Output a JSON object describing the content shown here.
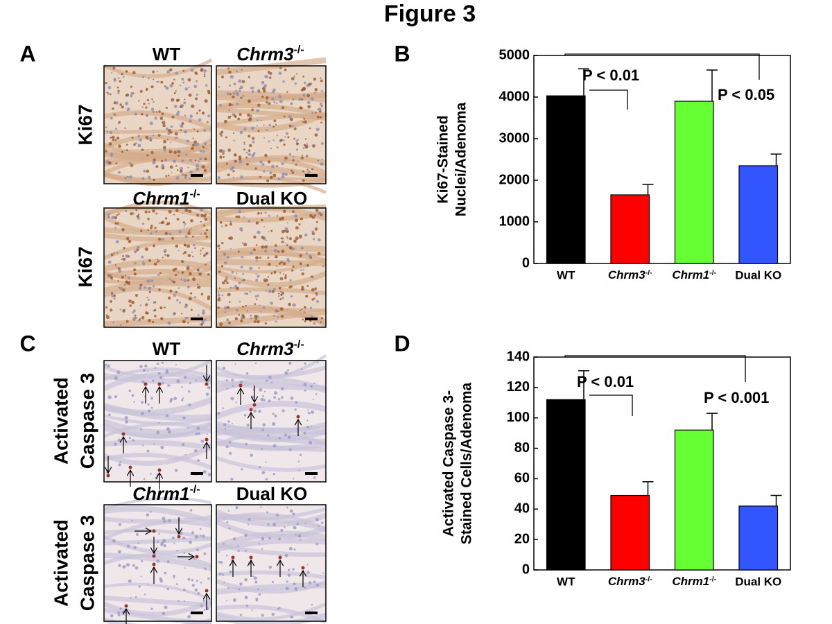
{
  "title": "Figure 3",
  "panel_labels": [
    "A",
    "B",
    "C",
    "D"
  ],
  "micrographs": {
    "ki67": {
      "row_label": "Ki67",
      "titles": [
        "WT",
        "Chrm3-/-",
        "Chrm1-/-",
        "Dual KO"
      ]
    },
    "caspase": {
      "row_label": [
        "Activated",
        "Caspase 3"
      ],
      "titles": [
        "WT",
        "Chrm3-/-",
        "Chrm1-/-",
        "Dual KO"
      ]
    }
  },
  "chart_data": [
    {
      "type": "bar",
      "ylabel": [
        "Ki67-Stained",
        "Nuclei/Adenoma"
      ],
      "categories": [
        "WT",
        "Chrm3-/-",
        "Chrm1-/-",
        "Dual KO"
      ],
      "values": [
        4030,
        1650,
        3900,
        2350
      ],
      "errors": [
        650,
        250,
        750,
        280
      ],
      "colors": [
        "#000000",
        "#ff0000",
        "#66ff33",
        "#3355ff"
      ],
      "ylim": [
        0,
        5000
      ],
      "yticks": [
        0,
        1000,
        2000,
        3000,
        4000,
        5000
      ],
      "annotations": [
        "P < 0.01",
        "P < 0.05"
      ]
    },
    {
      "type": "bar",
      "ylabel": [
        "Activated Caspase 3-",
        "Stained Cells/Adenoma"
      ],
      "categories": [
        "WT",
        "Chrm3-/-",
        "Chrm1-/-",
        "Dual KO"
      ],
      "values": [
        112,
        49,
        92,
        42
      ],
      "errors": [
        19,
        9,
        11,
        7
      ],
      "colors": [
        "#000000",
        "#ff0000",
        "#66ff33",
        "#3355ff"
      ],
      "ylim": [
        0,
        140
      ],
      "yticks": [
        0,
        20,
        40,
        60,
        80,
        100,
        120,
        140
      ],
      "annotations": [
        "P < 0.01",
        "P < 0.001"
      ]
    }
  ]
}
